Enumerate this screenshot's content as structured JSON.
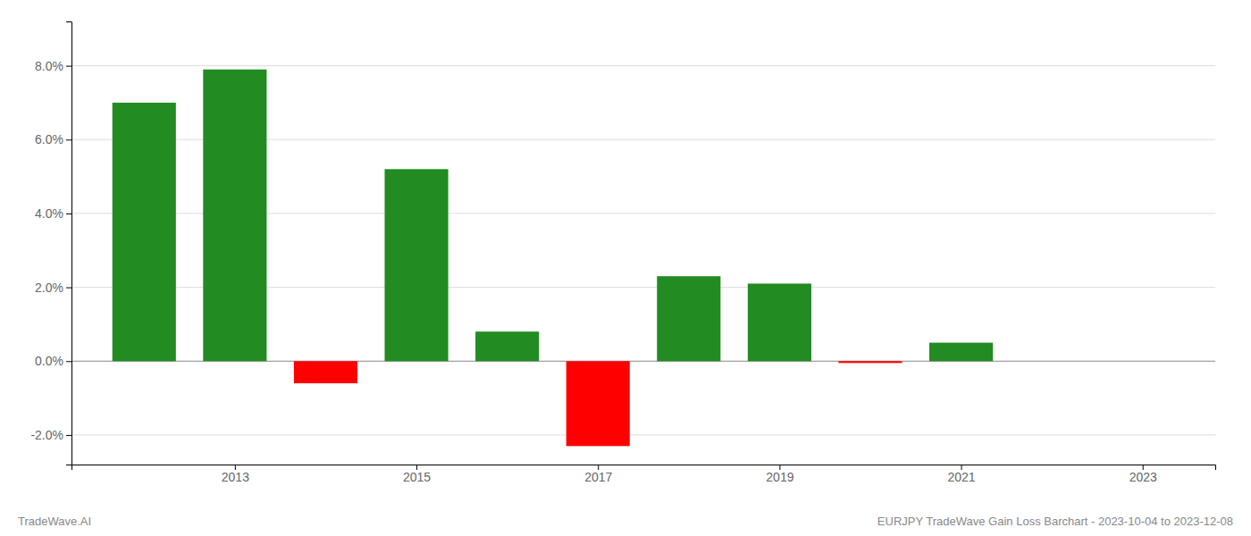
{
  "chart_data": {
    "type": "bar",
    "x": [
      2012,
      2013,
      2014,
      2015,
      2016,
      2017,
      2018,
      2019,
      2020,
      2021,
      2022
    ],
    "values": [
      0.07,
      0.079,
      -0.006,
      0.052,
      0.008,
      -0.023,
      0.023,
      0.021,
      -0.0005,
      0.005,
      0.0
    ],
    "colors": [
      "#228B22",
      "#228B22",
      "#FF0000",
      "#228B22",
      "#228B22",
      "#FF0000",
      "#228B22",
      "#228B22",
      "#FF0000",
      "#228B22",
      "#228B22"
    ],
    "xlim": [
      2011.2,
      2023.8
    ],
    "xticks": [
      2013,
      2015,
      2017,
      2019,
      2021,
      2023
    ],
    "ylim": [
      -0.028,
      0.092
    ],
    "yticks": [
      {
        "value": -0.02,
        "label": "-2.0%"
      },
      {
        "value": 0.0,
        "label": "0.0%"
      },
      {
        "value": 0.02,
        "label": "2.0%"
      },
      {
        "value": 0.04,
        "label": "4.0%"
      },
      {
        "value": 0.06,
        "label": "6.0%"
      },
      {
        "value": 0.08,
        "label": "8.0%"
      }
    ],
    "grid": true,
    "annotations": [
      "TradeWave.AI",
      "EURJPY TradeWave Gain Loss Barchart - 2023-10-04 to 2023-12-08"
    ]
  }
}
